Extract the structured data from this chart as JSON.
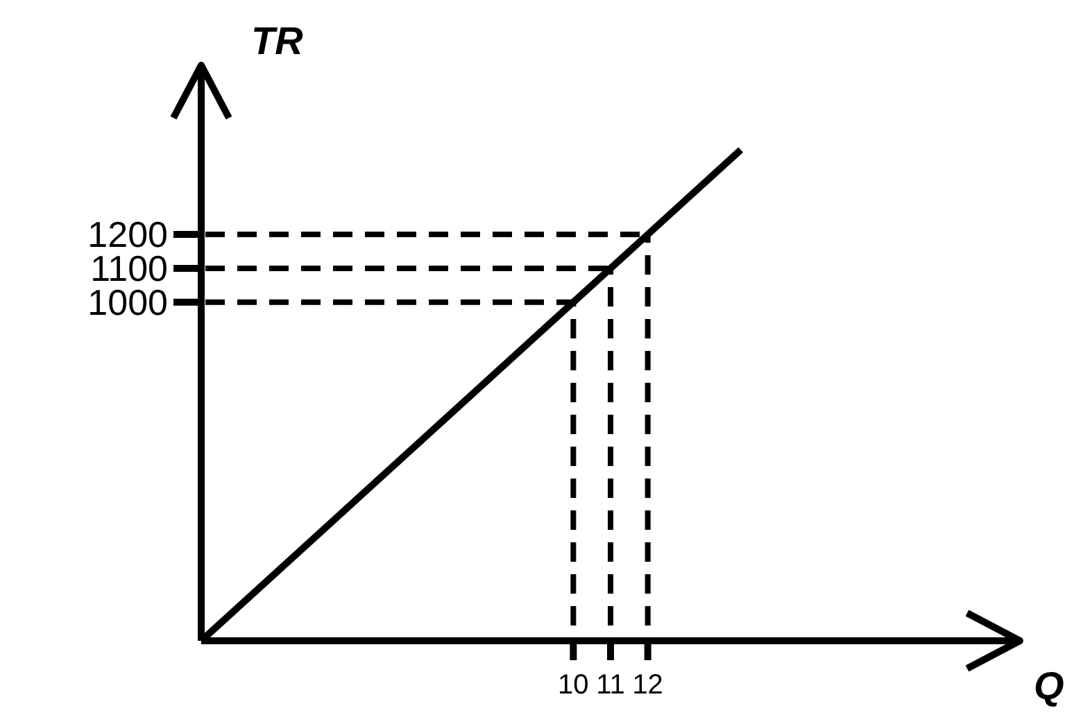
{
  "chart_data": {
    "type": "line",
    "xlabel": "Q",
    "ylabel": "TR",
    "x": [
      0,
      10,
      11,
      12,
      14.5
    ],
    "series": [
      {
        "color": "#000000",
        "values": [
          0,
          1000,
          1100,
          1200,
          1450
        ]
      }
    ],
    "xlim": [
      0,
      22
    ],
    "ylim": [
      0,
      1700
    ],
    "xticks": [
      10,
      11,
      12
    ],
    "yticks": [
      1000,
      1100,
      1200
    ],
    "ref_lines": [
      {
        "axis": "x",
        "value": 10,
        "line_style": "dashed"
      },
      {
        "axis": "x",
        "value": 11,
        "line_style": "dashed"
      },
      {
        "axis": "x",
        "value": 12,
        "line_style": "dashed"
      },
      {
        "axis": "y",
        "value": 1000,
        "line_style": "dashed"
      },
      {
        "axis": "y",
        "value": 1100,
        "line_style": "dashed"
      },
      {
        "axis": "y",
        "value": 1200,
        "line_style": "dashed"
      }
    ]
  }
}
